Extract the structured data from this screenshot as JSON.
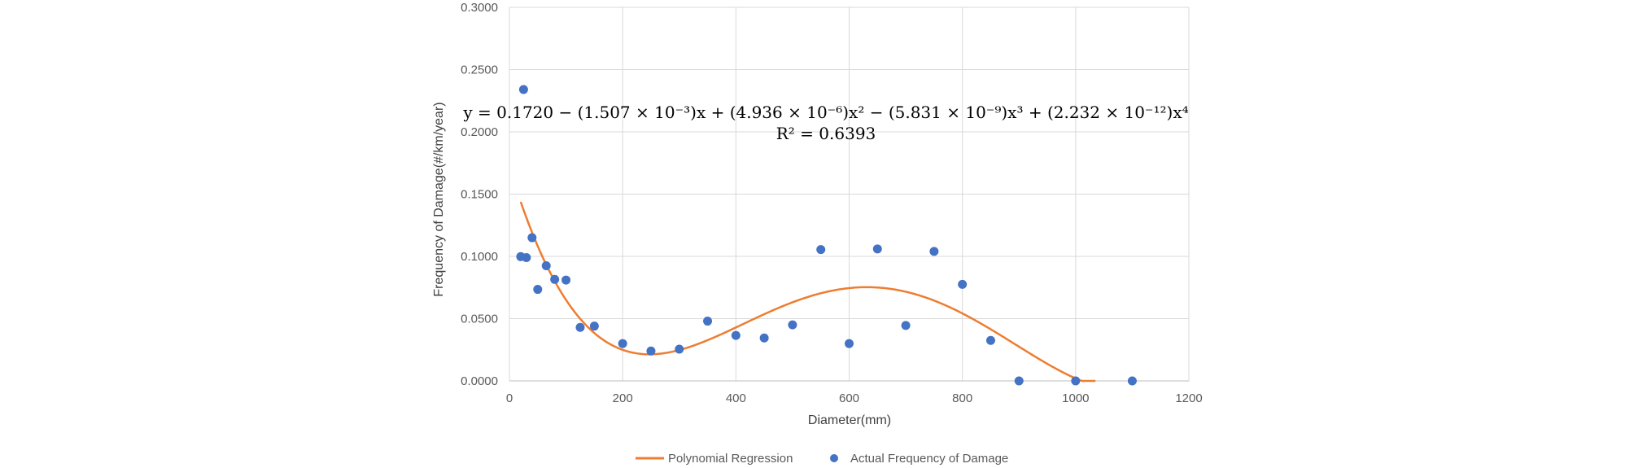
{
  "chart_data": {
    "type": "scatter",
    "title": "",
    "xlabel": "Diameter(mm)",
    "ylabel": "Frequency of Damage(#/km/year)",
    "xlim": [
      0,
      1200
    ],
    "ylim": [
      0,
      0.3
    ],
    "x_ticks": [
      "0",
      "200",
      "400",
      "600",
      "800",
      "1000",
      "1200"
    ],
    "y_ticks": [
      "0.0000",
      "0.0500",
      "0.1000",
      "0.1500",
      "0.2000",
      "0.2500",
      "0.3000"
    ],
    "grid": true,
    "legend_position": "bottom",
    "annotation": {
      "equation": "y = 0.1720 − (1.507 × 10⁻³)x + (4.936 × 10⁻⁶)x² − (5.831 × 10⁻⁹)x³ + (2.232 × 10⁻¹²)x⁴",
      "r_squared": "R² = 0.6393"
    },
    "series": [
      {
        "name": "Polynomial Regression",
        "kind": "line",
        "color": "#ed7d31",
        "coefficients": [
          0.172,
          -0.001507,
          4.936e-06,
          -5.831e-09,
          2.232e-12
        ],
        "x_range": [
          20,
          1035
        ]
      },
      {
        "name": "Actual Frequency of Damage",
        "kind": "scatter",
        "color": "#4472c4",
        "points": [
          [
            20,
            0.0998
          ],
          [
            25,
            0.234
          ],
          [
            30,
            0.099
          ],
          [
            40,
            0.115
          ],
          [
            50,
            0.0735
          ],
          [
            65,
            0.0925
          ],
          [
            80,
            0.0815
          ],
          [
            100,
            0.081
          ],
          [
            125,
            0.043
          ],
          [
            150,
            0.044
          ],
          [
            200,
            0.03
          ],
          [
            250,
            0.024
          ],
          [
            300,
            0.0255
          ],
          [
            350,
            0.048
          ],
          [
            400,
            0.0365
          ],
          [
            450,
            0.0345
          ],
          [
            500,
            0.045
          ],
          [
            550,
            0.1055
          ],
          [
            600,
            0.03
          ],
          [
            650,
            0.106
          ],
          [
            700,
            0.0445
          ],
          [
            750,
            0.104
          ],
          [
            800,
            0.0775
          ],
          [
            850,
            0.0325
          ],
          [
            900,
            0.0
          ],
          [
            1000,
            0.0
          ],
          [
            1100,
            0.0
          ]
        ]
      }
    ]
  }
}
